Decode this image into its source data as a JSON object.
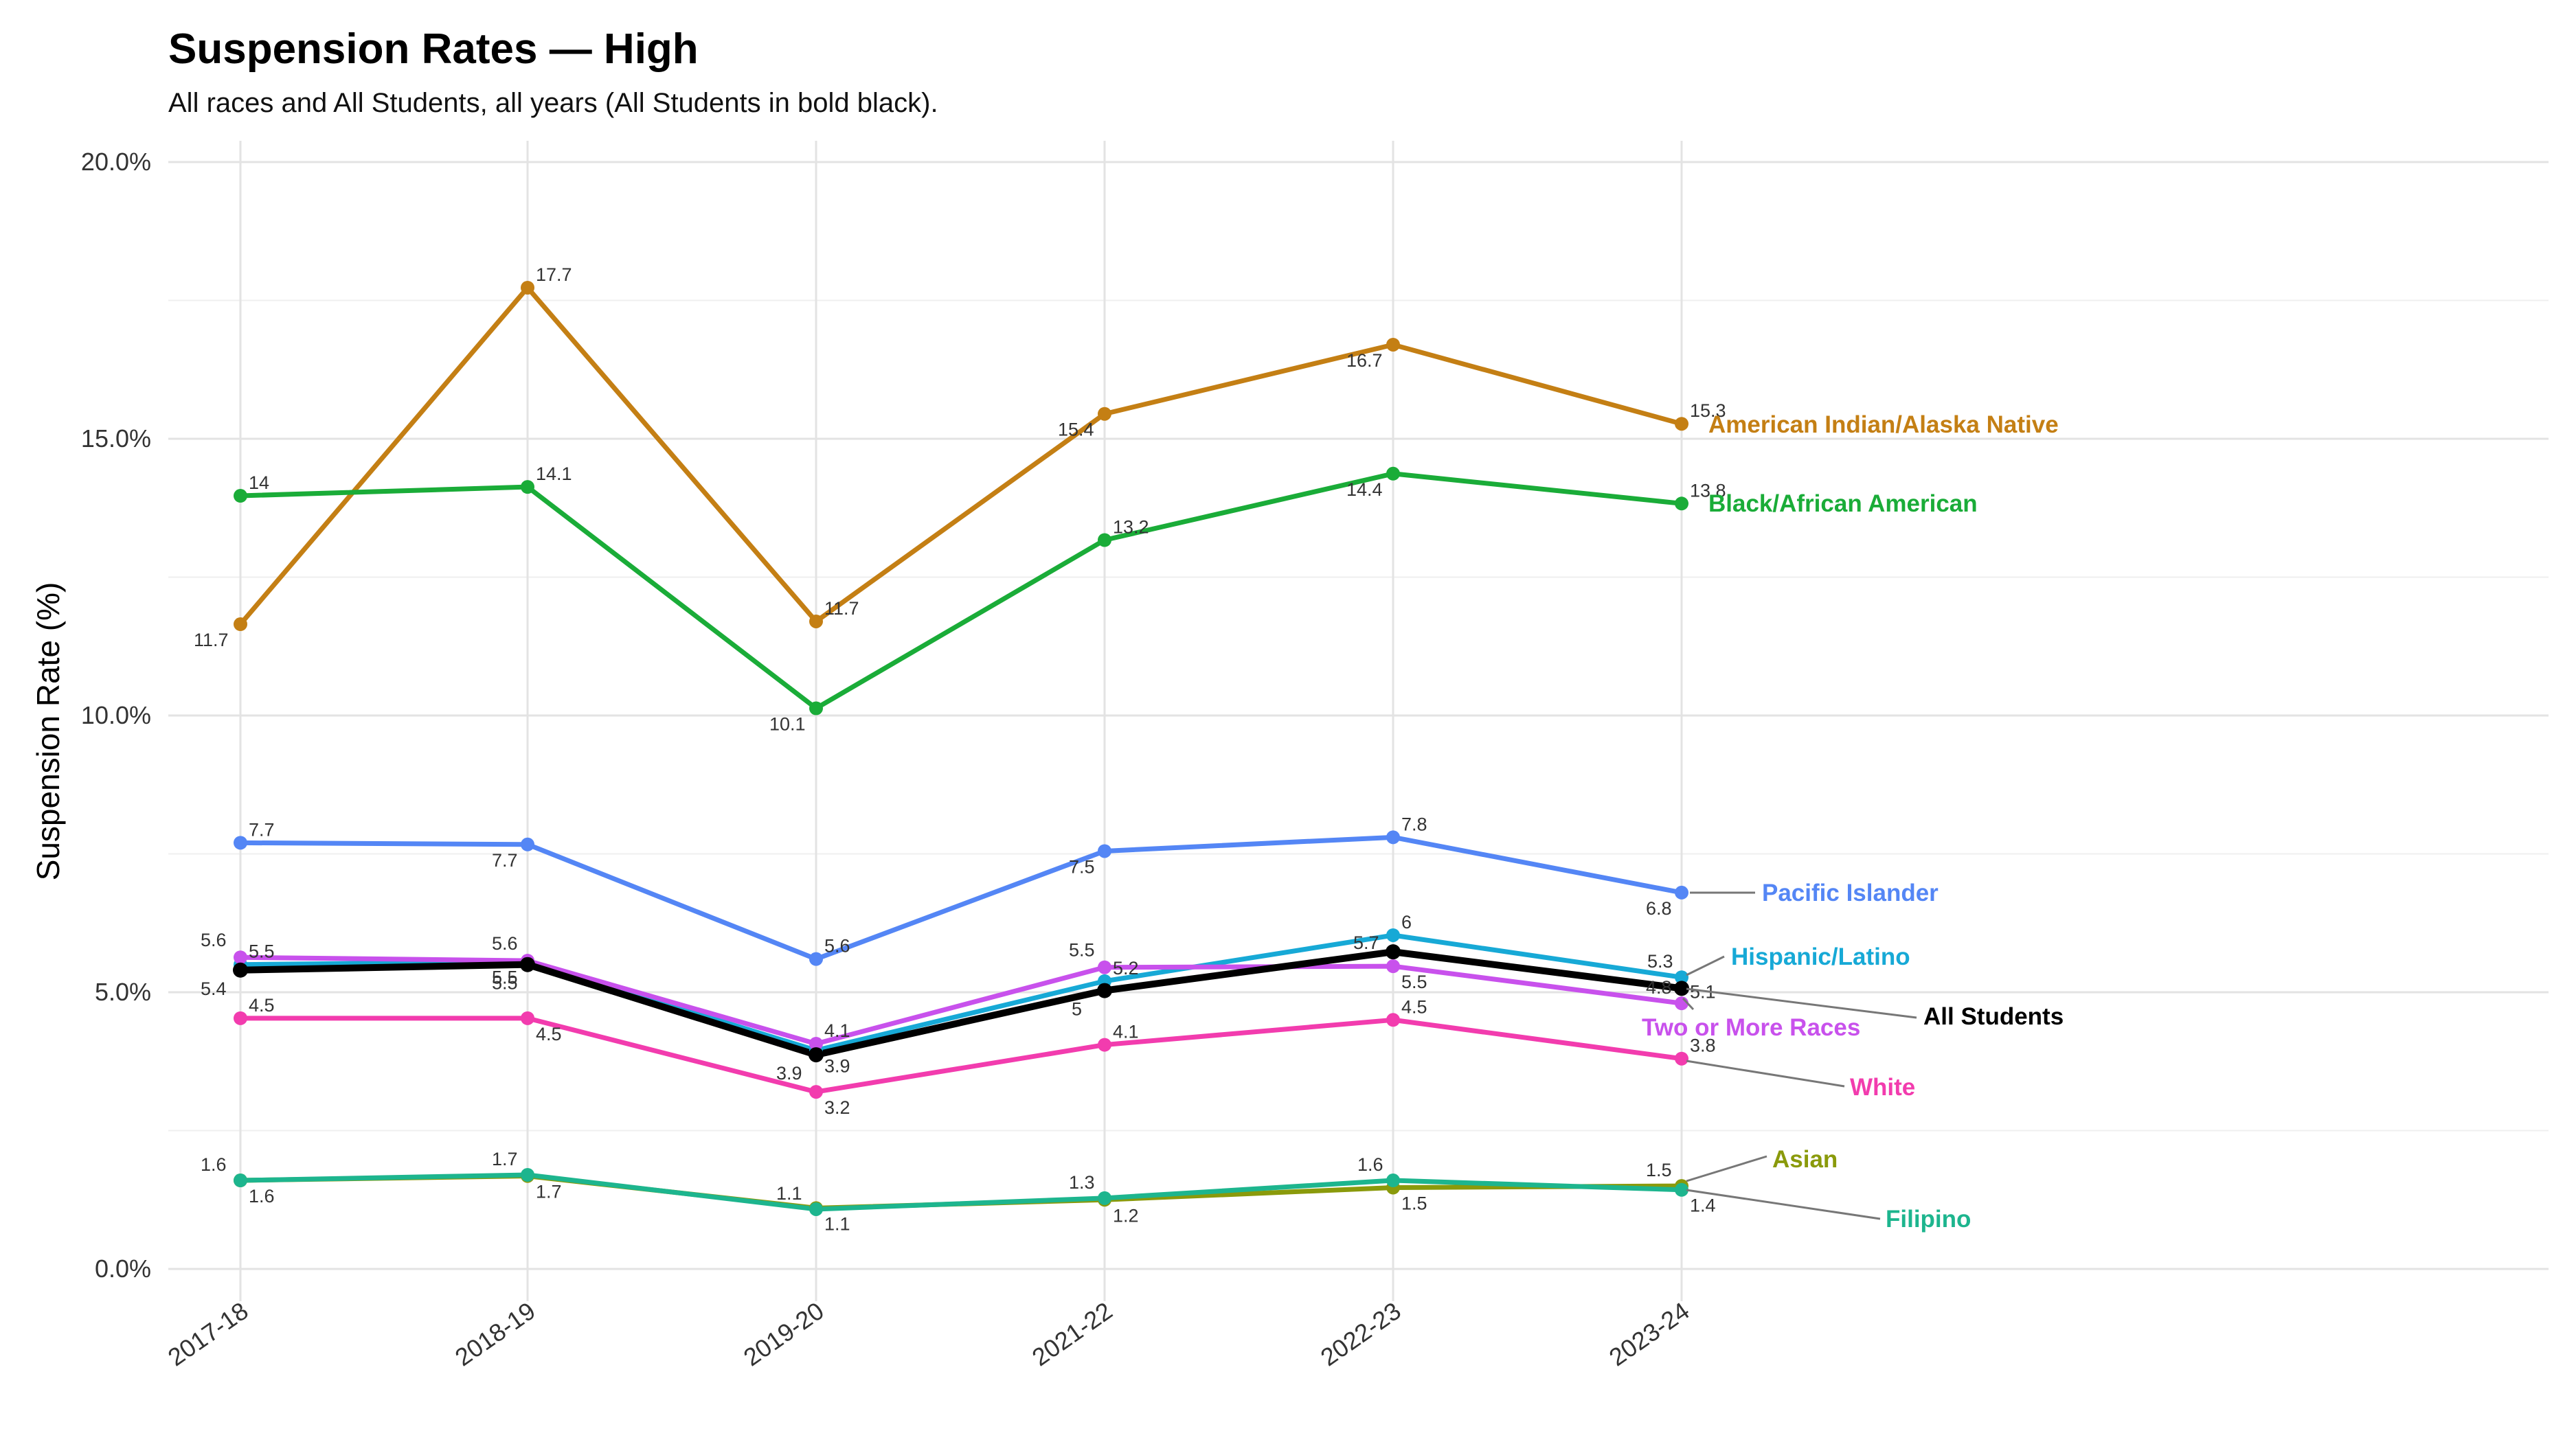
{
  "chart_data": {
    "type": "line",
    "title": "Suspension Rates — High",
    "subtitle": "All races and All Students, all years (All Students in bold black).",
    "xlabel": "",
    "ylabel": "Suspension Rate (%)",
    "categories": [
      "2017-18",
      "2018-19",
      "2019-20",
      "2021-22",
      "2022-23",
      "2023-24"
    ],
    "ylim": [
      0,
      20
    ],
    "yticks": [
      "0.0%",
      "5.0%",
      "10.0%",
      "15.0%",
      "20.0%"
    ],
    "grid": true,
    "legend": "direct labels at right end of lines",
    "series": [
      {
        "name": "American Indian/Alaska Native",
        "color": "#c47f14",
        "values": [
          11.65,
          17.73,
          11.7,
          15.45,
          16.7,
          15.27
        ],
        "labels": [
          "11.7",
          "17.7",
          "11.7",
          "15.4",
          "16.7",
          "15.3"
        ]
      },
      {
        "name": "Black/African American",
        "color": "#1aac38",
        "values": [
          13.97,
          14.13,
          10.13,
          13.17,
          14.37,
          13.83
        ],
        "labels": [
          "14",
          "14.1",
          "10.1",
          "13.2",
          "14.4",
          "13.8"
        ]
      },
      {
        "name": "Pacific Islander",
        "color": "#5486f5",
        "values": [
          7.7,
          7.67,
          5.6,
          7.55,
          7.8,
          6.8
        ],
        "labels": [
          "7.7",
          "7.7",
          "5.6",
          "7.5",
          "7.8",
          "6.8"
        ]
      },
      {
        "name": "Hispanic/Latino",
        "color": "#17a9d6",
        "values": [
          5.5,
          5.55,
          3.95,
          5.2,
          6.03,
          5.27
        ],
        "labels": [
          "5.5",
          "5.5",
          "3.9",
          "5.2",
          "6",
          "5.3"
        ]
      },
      {
        "name": "Two or More Races",
        "color": "#c851ec",
        "values": [
          5.63,
          5.57,
          4.07,
          5.45,
          5.47,
          4.8
        ],
        "labels": [
          "5.6",
          "5.6",
          "4.1",
          "5.5",
          "5.5",
          "4.8"
        ]
      },
      {
        "name": "All Students",
        "color": "#000000",
        "bold": true,
        "values": [
          5.4,
          5.5,
          3.87,
          5.03,
          5.73,
          5.07
        ],
        "labels": [
          "5.4",
          "5.5",
          "3.9",
          "5",
          "5.7",
          "5.1"
        ]
      },
      {
        "name": "White",
        "color": "#f23cae",
        "values": [
          4.53,
          4.53,
          3.2,
          4.05,
          4.5,
          3.8
        ],
        "labels": [
          "4.5",
          "4.5",
          "3.2",
          "4.1",
          "4.5",
          "3.8"
        ]
      },
      {
        "name": "Asian",
        "color": "#8a9a0b",
        "values": [
          1.6,
          1.68,
          1.1,
          1.25,
          1.47,
          1.5
        ],
        "labels": [
          "1.6",
          "1.7",
          "1.1",
          "1.2",
          "1.5",
          "1.5"
        ]
      },
      {
        "name": "Filipino",
        "color": "#1db58e",
        "values": [
          1.6,
          1.7,
          1.08,
          1.28,
          1.6,
          1.43
        ],
        "labels": [
          "1.6",
          "1.7",
          "1.1",
          "1.3",
          "1.6",
          "1.4"
        ]
      }
    ]
  }
}
